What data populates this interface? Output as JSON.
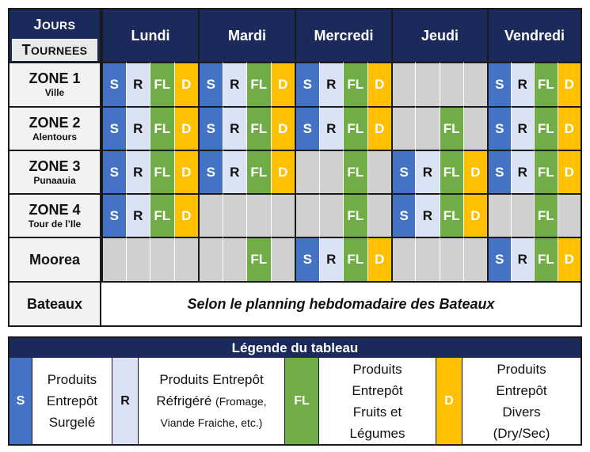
{
  "header": {
    "jours_cap": "J",
    "jours_rest": "OURS",
    "tournees_cap": "T",
    "tournees_rest": "OURNEES",
    "days": [
      "Lundi",
      "Mardi",
      "Mercredi",
      "Jeudi",
      "Vendredi"
    ]
  },
  "rows": [
    {
      "name": "ZONE 1",
      "sub": "Ville",
      "cells": [
        "S",
        "R",
        "FL",
        "D",
        "S",
        "R",
        "FL",
        "D",
        "S",
        "R",
        "FL",
        "D",
        "",
        "",
        "",
        "",
        "S",
        "R",
        "FL",
        "D"
      ]
    },
    {
      "name": "ZONE 2",
      "sub": "Alentours",
      "cells": [
        "S",
        "R",
        "FL",
        "D",
        "S",
        "R",
        "FL",
        "D",
        "S",
        "R",
        "FL",
        "D",
        "",
        "",
        "FL",
        "",
        "S",
        "R",
        "FL",
        "D"
      ]
    },
    {
      "name": "ZONE 3",
      "sub": "Punaauia",
      "cells": [
        "S",
        "R",
        "FL",
        "D",
        "S",
        "R",
        "FL",
        "D",
        "",
        "",
        "FL",
        "",
        "S",
        "R",
        "FL",
        "D",
        "S",
        "R",
        "FL",
        "D"
      ]
    },
    {
      "name": "ZONE 4",
      "sub": "Tour de l’Ile",
      "cells": [
        "S",
        "R",
        "FL",
        "D",
        "",
        "",
        "",
        "",
        "",
        "",
        "FL",
        "",
        "S",
        "R",
        "FL",
        "D",
        "",
        "",
        "FL",
        ""
      ]
    },
    {
      "name": "Moorea",
      "sub": "",
      "cells": [
        "",
        "",
        "",
        "",
        "",
        "",
        "FL",
        "",
        "S",
        "R",
        "FL",
        "D",
        "",
        "",
        "",
        "",
        "S",
        "R",
        "FL",
        "D"
      ]
    }
  ],
  "bateaux": {
    "name": "Bateaux",
    "note": "Selon le planning hebdomadaire des Bateaux"
  },
  "legend": {
    "title": "Légende du tableau",
    "items": [
      {
        "code": "S",
        "lines": [
          "Produits",
          "Entrepôt",
          "Surgelé"
        ],
        "small": ""
      },
      {
        "code": "R",
        "lines": [
          "Produits Entrepôt",
          "Réfrigéré"
        ],
        "small": "(Fromage,",
        "small2": "Viande Fraiche, etc.)"
      },
      {
        "code": "FL",
        "lines": [
          "Produits",
          "Entrepôt",
          "Fruits et",
          "Légumes"
        ],
        "small": ""
      },
      {
        "code": "D",
        "lines": [
          "Produits",
          "Entrepôt",
          "Divers",
          "(Dry/Sec)"
        ],
        "small": ""
      }
    ]
  },
  "colors": {
    "S": "#4472c4",
    "R": "#dae3f3",
    "FL": "#70ad47",
    "D": "#ffc000",
    "empty": "#d0d0d0",
    "header": "#1b2a5a"
  }
}
